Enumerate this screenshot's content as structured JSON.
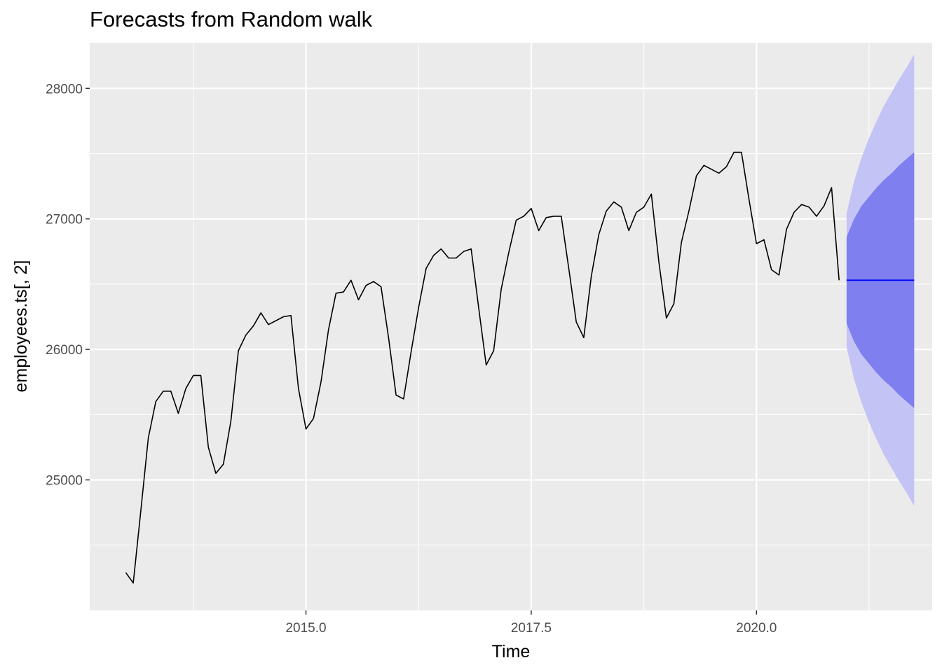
{
  "chart_data": {
    "type": "line",
    "title": "Forecasts from Random walk",
    "xlabel": "Time",
    "ylabel": "employees.ts[, 2]",
    "xlim": [
      2012.6,
      2021.95
    ],
    "ylim": [
      24000,
      28350
    ],
    "x_ticks": [
      2015.0,
      2017.5,
      2020.0
    ],
    "x_tick_labels": [
      "2015.0",
      "2017.5",
      "2020.0"
    ],
    "y_ticks": [
      25000,
      26000,
      27000,
      28000
    ],
    "y_tick_labels": [
      "25000",
      "26000",
      "27000",
      "28000"
    ],
    "grid": true,
    "colors": {
      "panel": "#ebebeb",
      "grid": "#ffffff",
      "series": "#000000",
      "forecast_line": "#0000ff",
      "pi80": "#7f7fef",
      "pi95": "#c3c3f5",
      "tick_text": "#4d4d4d"
    },
    "series": [
      {
        "values": [
          [
            2013.0,
            24290
          ],
          [
            2013.0833,
            24210
          ],
          [
            2013.1667,
            24760
          ],
          [
            2013.25,
            25320
          ],
          [
            2013.3333,
            25600
          ],
          [
            2013.4167,
            25680
          ],
          [
            2013.5,
            25680
          ],
          [
            2013.5833,
            25510
          ],
          [
            2013.6667,
            25700
          ],
          [
            2013.75,
            25800
          ],
          [
            2013.8333,
            25800
          ],
          [
            2013.9167,
            25250
          ],
          [
            2014.0,
            25050
          ],
          [
            2014.0833,
            25120
          ],
          [
            2014.1667,
            25450
          ],
          [
            2014.25,
            25990
          ],
          [
            2014.3333,
            26110
          ],
          [
            2014.4167,
            26180
          ],
          [
            2014.5,
            26280
          ],
          [
            2014.5833,
            26190
          ],
          [
            2014.6667,
            26220
          ],
          [
            2014.75,
            26250
          ],
          [
            2014.8333,
            26260
          ],
          [
            2014.9167,
            25700
          ],
          [
            2015.0,
            25390
          ],
          [
            2015.0833,
            25470
          ],
          [
            2015.1667,
            25750
          ],
          [
            2015.25,
            26150
          ],
          [
            2015.3333,
            26430
          ],
          [
            2015.4167,
            26440
          ],
          [
            2015.5,
            26530
          ],
          [
            2015.5833,
            26380
          ],
          [
            2015.6667,
            26490
          ],
          [
            2015.75,
            26520
          ],
          [
            2015.8333,
            26480
          ],
          [
            2015.9167,
            26090
          ],
          [
            2016.0,
            25650
          ],
          [
            2016.0833,
            25620
          ],
          [
            2016.1667,
            25980
          ],
          [
            2016.25,
            26320
          ],
          [
            2016.3333,
            26620
          ],
          [
            2016.4167,
            26720
          ],
          [
            2016.5,
            26770
          ],
          [
            2016.5833,
            26700
          ],
          [
            2016.6667,
            26700
          ],
          [
            2016.75,
            26750
          ],
          [
            2016.8333,
            26770
          ],
          [
            2016.9167,
            26320
          ],
          [
            2017.0,
            25880
          ],
          [
            2017.0833,
            25990
          ],
          [
            2017.1667,
            26460
          ],
          [
            2017.25,
            26740
          ],
          [
            2017.3333,
            26990
          ],
          [
            2017.4167,
            27020
          ],
          [
            2017.5,
            27080
          ],
          [
            2017.5833,
            26910
          ],
          [
            2017.6667,
            27010
          ],
          [
            2017.75,
            27020
          ],
          [
            2017.8333,
            27020
          ],
          [
            2017.9167,
            26620
          ],
          [
            2018.0,
            26210
          ],
          [
            2018.0833,
            26090
          ],
          [
            2018.1667,
            26560
          ],
          [
            2018.25,
            26880
          ],
          [
            2018.3333,
            27060
          ],
          [
            2018.4167,
            27130
          ],
          [
            2018.5,
            27090
          ],
          [
            2018.5833,
            26910
          ],
          [
            2018.6667,
            27050
          ],
          [
            2018.75,
            27090
          ],
          [
            2018.8333,
            27190
          ],
          [
            2018.9167,
            26670
          ],
          [
            2019.0,
            26240
          ],
          [
            2019.0833,
            26350
          ],
          [
            2019.1667,
            26820
          ],
          [
            2019.25,
            27060
          ],
          [
            2019.3333,
            27330
          ],
          [
            2019.4167,
            27410
          ],
          [
            2019.5,
            27380
          ],
          [
            2019.5833,
            27350
          ],
          [
            2019.6667,
            27400
          ],
          [
            2019.75,
            27510
          ],
          [
            2019.8333,
            27510
          ],
          [
            2019.9167,
            27150
          ],
          [
            2020.0,
            26810
          ],
          [
            2020.0833,
            26840
          ],
          [
            2020.1667,
            26610
          ],
          [
            2020.25,
            26570
          ],
          [
            2020.3333,
            26920
          ],
          [
            2020.4167,
            27050
          ],
          [
            2020.5,
            27110
          ],
          [
            2020.5833,
            27090
          ],
          [
            2020.6667,
            27020
          ],
          [
            2020.75,
            27100
          ],
          [
            2020.8333,
            27240
          ],
          [
            2020.9167,
            26530
          ]
        ]
      }
    ],
    "forecast": {
      "mean": 26530,
      "x": [
        2021.0,
        2021.0833,
        2021.1667,
        2021.25,
        2021.3333,
        2021.4167,
        2021.5,
        2021.5833,
        2021.6667,
        2021.75
      ],
      "lo80": [
        26200,
        26060,
        25960,
        25890,
        25820,
        25760,
        25710,
        25650,
        25600,
        25550
      ],
      "hi80": [
        26860,
        27000,
        27100,
        27170,
        27240,
        27300,
        27350,
        27410,
        27460,
        27510
      ],
      "lo95": [
        26020,
        25770,
        25590,
        25440,
        25310,
        25190,
        25090,
        24990,
        24900,
        24800
      ],
      "hi95": [
        27040,
        27290,
        27470,
        27620,
        27750,
        27870,
        27970,
        28070,
        28160,
        28260
      ]
    }
  }
}
